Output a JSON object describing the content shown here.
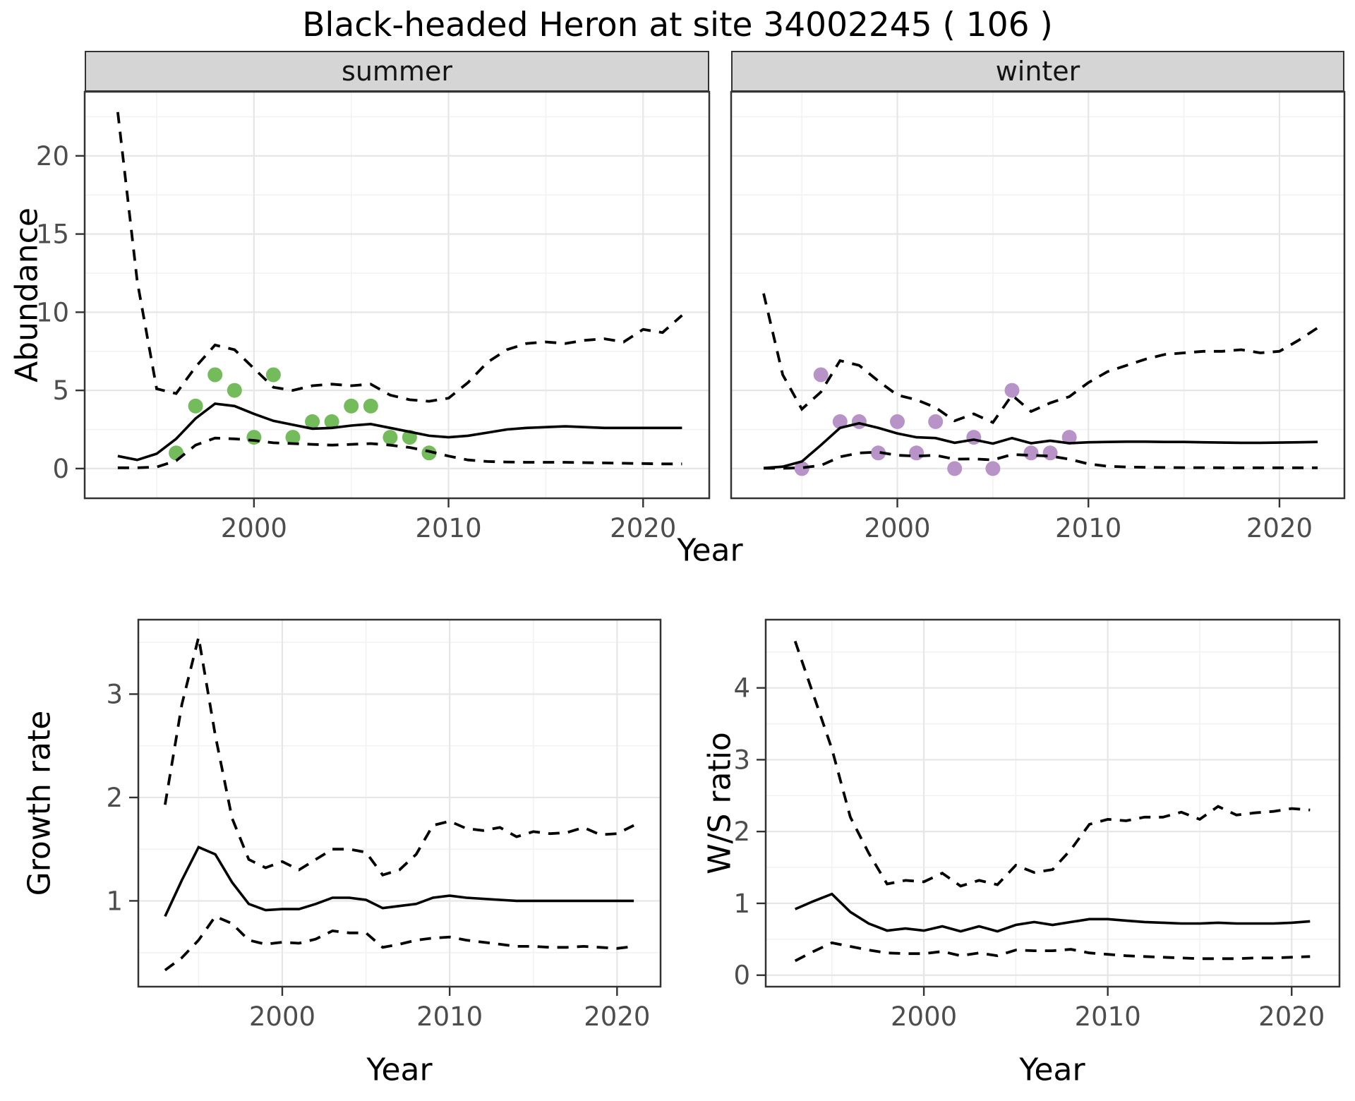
{
  "title": "Black-headed Heron at site 34002245 ( 106 )",
  "facets": {
    "summer": "summer",
    "winter": "winter"
  },
  "axis_titles": {
    "abundance": "Abundance",
    "growth": "Growth rate",
    "ws": "W/S ratio",
    "year_top": "Year",
    "year_growth": "Year",
    "year_ws": "Year"
  },
  "style": {
    "summer_point": "#74bb5b",
    "winter_point": "#b793c8",
    "line_color": "#000000",
    "strip_bg": "#d5d5d5",
    "panel_border": "#333333",
    "grid_major": "#e6e6e6",
    "grid_minor": "#f2f2f2",
    "tick_text": "#4d4d4d",
    "tick_mark": "#333333"
  },
  "chart_data": [
    {
      "id": "abundance-summer",
      "type": "line",
      "facet_label": "summer",
      "xlabel": "Year",
      "ylabel": "Abundance",
      "xticks": [
        2000,
        2010,
        2020
      ],
      "yticks": [
        0,
        5,
        10,
        15,
        20
      ],
      "xlim": [
        1991.3,
        2023.4
      ],
      "ylim": [
        -1.9,
        24.1
      ],
      "grid": true,
      "legend": "none",
      "x": [
        1993,
        1994,
        1995,
        1996,
        1997,
        1998,
        1999,
        2000,
        2001,
        2002,
        2003,
        2004,
        2005,
        2006,
        2007,
        2008,
        2009,
        2010,
        2011,
        2012,
        2013,
        2014,
        2015,
        2016,
        2017,
        2018,
        2019,
        2020,
        2021,
        2022
      ],
      "series": [
        {
          "name": "mean",
          "linestyle": "solid",
          "values": [
            0.8,
            0.55,
            0.95,
            1.9,
            3.2,
            4.15,
            4.0,
            3.5,
            3.05,
            2.8,
            2.55,
            2.6,
            2.75,
            2.85,
            2.6,
            2.35,
            2.1,
            2.0,
            2.1,
            2.3,
            2.5,
            2.6,
            2.65,
            2.7,
            2.65,
            2.6,
            2.6,
            2.6,
            2.6,
            2.6
          ]
        },
        {
          "name": "ci-upper",
          "linestyle": "dashed",
          "values": [
            22.8,
            12.0,
            5.1,
            4.8,
            6.5,
            7.9,
            7.6,
            6.4,
            5.2,
            5.0,
            5.3,
            5.4,
            5.3,
            5.4,
            4.7,
            4.4,
            4.3,
            4.5,
            5.5,
            6.8,
            7.6,
            8.0,
            8.1,
            8.0,
            8.2,
            8.3,
            8.1,
            8.9,
            8.7,
            9.8
          ]
        },
        {
          "name": "ci-lower",
          "linestyle": "dashed",
          "values": [
            0.05,
            0.05,
            0.1,
            0.5,
            1.5,
            1.95,
            1.9,
            1.8,
            1.65,
            1.6,
            1.55,
            1.5,
            1.55,
            1.6,
            1.5,
            1.35,
            1.1,
            0.8,
            0.55,
            0.45,
            0.42,
            0.4,
            0.4,
            0.4,
            0.38,
            0.36,
            0.34,
            0.32,
            0.3,
            0.3
          ]
        }
      ],
      "observations": {
        "color": "#74bb5b",
        "x": [
          1996,
          1997,
          1998,
          1999,
          2000,
          2001,
          2002,
          2003,
          2004,
          2005,
          2006,
          2007,
          2008,
          2009
        ],
        "y": [
          1,
          4,
          6,
          5,
          2,
          6,
          2,
          3,
          3,
          4,
          4,
          2,
          2,
          1
        ]
      }
    },
    {
      "id": "abundance-winter",
      "type": "line",
      "facet_label": "winter",
      "xlabel": "Year",
      "ylabel": "Abundance",
      "xticks": [
        2000,
        2010,
        2020
      ],
      "yticks": [
        0,
        5,
        10,
        15,
        20
      ],
      "xlim": [
        1991.3,
        2023.4
      ],
      "ylim": [
        -1.9,
        24.1
      ],
      "grid": true,
      "legend": "none",
      "x": [
        1993,
        1994,
        1995,
        1996,
        1997,
        1998,
        1999,
        2000,
        2001,
        2002,
        2003,
        2004,
        2005,
        2006,
        2007,
        2008,
        2009,
        2010,
        2011,
        2012,
        2013,
        2014,
        2015,
        2016,
        2017,
        2018,
        2019,
        2020,
        2021,
        2022
      ],
      "series": [
        {
          "name": "mean",
          "linestyle": "solid",
          "values": [
            0.03,
            0.12,
            0.45,
            1.5,
            2.6,
            2.9,
            2.6,
            2.25,
            2.0,
            1.95,
            1.65,
            1.85,
            1.6,
            1.95,
            1.62,
            1.78,
            1.62,
            1.68,
            1.7,
            1.72,
            1.72,
            1.7,
            1.7,
            1.68,
            1.66,
            1.65,
            1.65,
            1.66,
            1.68,
            1.7
          ]
        },
        {
          "name": "ci-upper",
          "linestyle": "dashed",
          "values": [
            11.2,
            6.0,
            3.8,
            4.9,
            6.9,
            6.6,
            5.6,
            4.7,
            4.4,
            3.9,
            3.05,
            3.5,
            2.95,
            4.7,
            3.65,
            4.2,
            4.6,
            5.5,
            6.2,
            6.6,
            7.0,
            7.3,
            7.4,
            7.5,
            7.5,
            7.6,
            7.4,
            7.5,
            8.2,
            9.0
          ]
        },
        {
          "name": "ci-lower",
          "linestyle": "dashed",
          "values": [
            0.02,
            0.02,
            0.05,
            0.2,
            0.75,
            1.0,
            1.05,
            0.85,
            0.8,
            0.85,
            0.6,
            0.62,
            0.55,
            0.9,
            0.85,
            0.8,
            0.6,
            0.3,
            0.15,
            0.1,
            0.08,
            0.07,
            0.06,
            0.06,
            0.05,
            0.05,
            0.05,
            0.05,
            0.05,
            0.05
          ]
        }
      ],
      "observations": {
        "color": "#b793c8",
        "x": [
          1995,
          1996,
          1997,
          1998,
          1999,
          2000,
          2001,
          2002,
          2003,
          2004,
          2005,
          2006,
          2007,
          2008,
          2009
        ],
        "y": [
          0,
          6,
          3,
          3,
          1,
          3,
          1,
          3,
          0,
          2,
          0,
          5,
          1,
          1,
          2
        ]
      }
    },
    {
      "id": "growth-rate",
      "type": "line",
      "facet_label": "",
      "xlabel": "Year",
      "ylabel": "Growth rate",
      "xticks": [
        2000,
        2010,
        2020
      ],
      "yticks": [
        1,
        2,
        3
      ],
      "xlim": [
        1991.4,
        2022.6
      ],
      "ylim": [
        0.17,
        3.72
      ],
      "grid": true,
      "legend": "none",
      "x": [
        1993,
        1994,
        1995,
        1996,
        1997,
        1998,
        1999,
        2000,
        2001,
        2002,
        2003,
        2004,
        2005,
        2006,
        2007,
        2008,
        2009,
        2010,
        2011,
        2012,
        2013,
        2014,
        2015,
        2016,
        2017,
        2018,
        2019,
        2020,
        2021
      ],
      "series": [
        {
          "name": "mean",
          "linestyle": "solid",
          "values": [
            0.85,
            1.2,
            1.52,
            1.45,
            1.18,
            0.97,
            0.91,
            0.92,
            0.92,
            0.97,
            1.03,
            1.03,
            1.01,
            0.93,
            0.95,
            0.97,
            1.03,
            1.05,
            1.03,
            1.02,
            1.01,
            1.0,
            1.0,
            1.0,
            1.0,
            1.0,
            1.0,
            1.0,
            1.0
          ]
        },
        {
          "name": "ci-upper",
          "linestyle": "dashed",
          "values": [
            1.93,
            2.9,
            3.55,
            2.6,
            1.8,
            1.4,
            1.32,
            1.38,
            1.3,
            1.4,
            1.5,
            1.5,
            1.47,
            1.25,
            1.3,
            1.45,
            1.73,
            1.77,
            1.7,
            1.68,
            1.71,
            1.62,
            1.67,
            1.65,
            1.66,
            1.71,
            1.64,
            1.65,
            1.73
          ]
        },
        {
          "name": "ci-lower",
          "linestyle": "dashed",
          "values": [
            0.33,
            0.45,
            0.62,
            0.85,
            0.78,
            0.62,
            0.58,
            0.6,
            0.59,
            0.63,
            0.71,
            0.69,
            0.69,
            0.55,
            0.58,
            0.62,
            0.64,
            0.65,
            0.62,
            0.6,
            0.58,
            0.56,
            0.56,
            0.55,
            0.55,
            0.56,
            0.55,
            0.54,
            0.56
          ]
        }
      ]
    },
    {
      "id": "ws-ratio",
      "type": "line",
      "facet_label": "",
      "xlabel": "Year",
      "ylabel": "W/S ratio",
      "xticks": [
        2000,
        2010,
        2020
      ],
      "yticks": [
        0,
        1,
        2,
        3,
        4
      ],
      "xlim": [
        1991.4,
        2022.6
      ],
      "ylim": [
        -0.16,
        4.95
      ],
      "grid": true,
      "legend": "none",
      "x": [
        1993,
        1994,
        1995,
        1996,
        1997,
        1998,
        1999,
        2000,
        2001,
        2002,
        2003,
        2004,
        2005,
        2006,
        2007,
        2008,
        2009,
        2010,
        2011,
        2012,
        2013,
        2014,
        2015,
        2016,
        2017,
        2018,
        2019,
        2020,
        2021
      ],
      "series": [
        {
          "name": "mean",
          "linestyle": "solid",
          "values": [
            0.92,
            1.03,
            1.13,
            0.88,
            0.72,
            0.62,
            0.65,
            0.62,
            0.68,
            0.61,
            0.68,
            0.61,
            0.7,
            0.74,
            0.7,
            0.74,
            0.78,
            0.78,
            0.76,
            0.74,
            0.73,
            0.72,
            0.72,
            0.73,
            0.72,
            0.72,
            0.72,
            0.73,
            0.75
          ]
        },
        {
          "name": "ci-upper",
          "linestyle": "dashed",
          "values": [
            4.65,
            3.9,
            3.15,
            2.2,
            1.7,
            1.27,
            1.32,
            1.3,
            1.42,
            1.24,
            1.32,
            1.26,
            1.53,
            1.43,
            1.47,
            1.75,
            2.1,
            2.17,
            2.15,
            2.2,
            2.2,
            2.27,
            2.17,
            2.35,
            2.23,
            2.26,
            2.28,
            2.32,
            2.3
          ]
        },
        {
          "name": "ci-lower",
          "linestyle": "dashed",
          "values": [
            0.2,
            0.33,
            0.45,
            0.4,
            0.35,
            0.31,
            0.3,
            0.3,
            0.33,
            0.27,
            0.31,
            0.27,
            0.35,
            0.34,
            0.34,
            0.36,
            0.31,
            0.29,
            0.27,
            0.26,
            0.25,
            0.24,
            0.23,
            0.23,
            0.23,
            0.24,
            0.24,
            0.25,
            0.26
          ]
        }
      ]
    }
  ]
}
